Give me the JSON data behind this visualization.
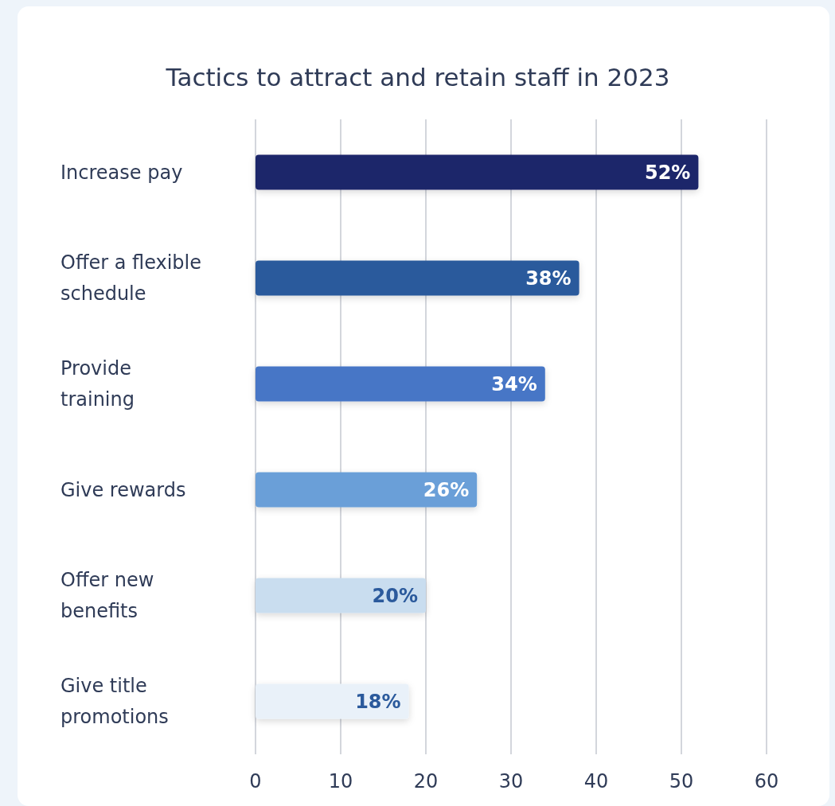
{
  "chart_data": {
    "type": "bar",
    "orientation": "horizontal",
    "title": "Tactics to attract and retain staff in 2023",
    "categories": [
      "Increase pay",
      "Offer a flexible\nschedule",
      "Provide\ntraining",
      "Give rewards",
      "Offer new\nbenefits",
      "Give title\npromotions"
    ],
    "values": [
      52,
      38,
      34,
      26,
      20,
      18
    ],
    "colors": [
      "#1f276b",
      "#2b5a9c",
      "#4676c6",
      "#6a9fd8",
      "#c9ddef",
      "#e9f1f9"
    ],
    "value_labels": [
      "52%",
      "38%",
      "34%",
      "26%",
      "20%",
      "18%"
    ],
    "xlim": [
      0,
      60
    ],
    "xticks": [
      0,
      10,
      20,
      30,
      40,
      50,
      60
    ],
    "grid": "x"
  }
}
